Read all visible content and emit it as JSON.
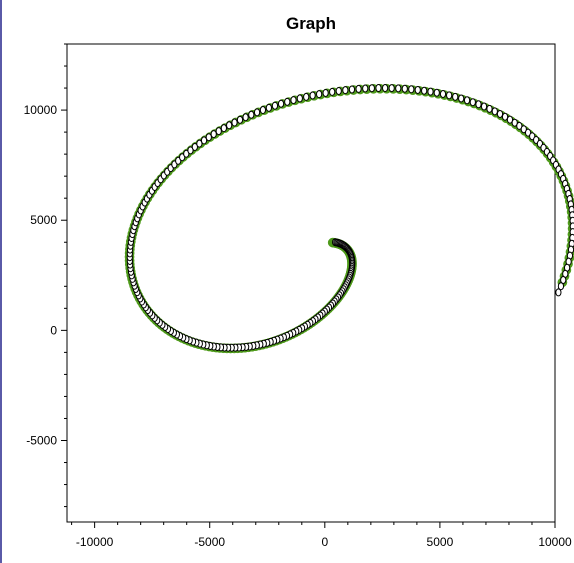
{
  "chart_data": {
    "type": "scatter",
    "title": "Graph",
    "xlabel": "",
    "ylabel": "",
    "xlim": [
      -11200,
      10000
    ],
    "ylim": [
      -8700,
      13000
    ],
    "x_ticks": [
      -10000,
      -5000,
      0,
      5000,
      10000
    ],
    "y_ticks": [
      -5000,
      0,
      5000,
      10000
    ],
    "x_tick_labels": [
      "-10000",
      "-5000",
      "0",
      "5000",
      "10000"
    ],
    "y_tick_labels": [
      "-5000",
      "0",
      "5000",
      "10000"
    ],
    "grid": false,
    "series": [
      {
        "marker": "filled-circle",
        "color": "#4e9a1a",
        "outline": "#4e9a1a",
        "a": 2000,
        "theta_start": 0,
        "theta_end": 6.9,
        "points": 240,
        "offset": [
          -0.15,
          0.35
        ],
        "description_shape": "clockwise elliptical spiral from center (~-1300, 3400) outward"
      },
      {
        "marker": "open-circle",
        "color": "#ffffff",
        "outline": "#000000",
        "a": 2000,
        "theta_start": 0.05,
        "theta_end": 6.95,
        "points": 240,
        "offset": [
          0.1,
          -0.35
        ]
      }
    ]
  },
  "colors": {
    "series_fill": "#4e9a1a",
    "axis": "#000000",
    "background": "#ffffff"
  }
}
